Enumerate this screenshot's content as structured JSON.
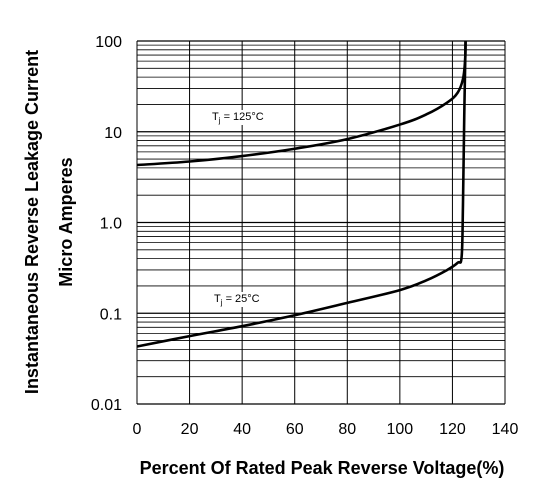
{
  "chart_data": {
    "type": "line",
    "xlabel": "Percent Of Rated Peak Reverse Voltage(%)",
    "ylabel_line1": "Instantaneous Reverse Leakage Current",
    "ylabel_line2": "Micro Amperes",
    "xlim": [
      0,
      140
    ],
    "ylim": [
      0.01,
      100
    ],
    "yscale": "log",
    "grid": true,
    "x_ticks": [
      "0",
      "20",
      "40",
      "60",
      "80",
      "100",
      "120",
      "140"
    ],
    "y_ticks": [
      "0.01",
      "0.1",
      "1.0",
      "10",
      "100"
    ],
    "series": [
      {
        "label_prefix": "T",
        "label_sub": "j",
        "label_suffix": " = 125°C",
        "x": [
          0,
          20,
          40,
          60,
          80,
          100,
          110,
          118,
          122,
          124,
          124.8,
          125
        ],
        "y": [
          4.3,
          4.7,
          5.4,
          6.5,
          8.3,
          12,
          15.5,
          21,
          27,
          38,
          60,
          100
        ]
      },
      {
        "label_prefix": "T",
        "label_sub": "j",
        "label_suffix": " = 25°C",
        "x": [
          0,
          20,
          40,
          60,
          80,
          100,
          110,
          118,
          122,
          123.5,
          124,
          124.5,
          125
        ],
        "y": [
          0.043,
          0.056,
          0.072,
          0.095,
          0.13,
          0.18,
          0.23,
          0.3,
          0.36,
          0.42,
          1.5,
          15,
          100
        ]
      }
    ]
  }
}
